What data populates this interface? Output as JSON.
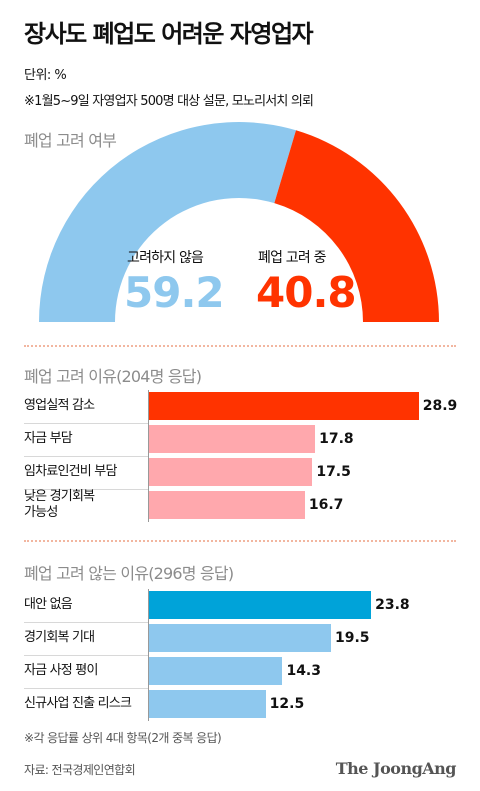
{
  "title": "장사도 폐업도 어려운 자영업자",
  "unit": "단위: %",
  "note": "※1월5~9일 자영업자 500명 대상 설문, 모노리서치 의뢰",
  "colors": {
    "red": "#ff3300",
    "pink": "#ffa8ad",
    "blue": "#8ec8ee",
    "teal": "#00a3d9"
  },
  "chart_data": [
    {
      "type": "pie",
      "title": "폐업 고려 여부",
      "shape": "half-donut gauge",
      "slices": [
        {
          "label": "고려하지 않음",
          "value": 59.2,
          "display": "59.2",
          "color": "#8ec8ee"
        },
        {
          "label": "폐업 고려 중",
          "value": 40.8,
          "display": "40.8",
          "color": "#ff3300"
        }
      ]
    },
    {
      "type": "bar",
      "orientation": "horizontal",
      "title": "폐업 고려 이유(204명 응답)",
      "categories": [
        "영업실적 감소",
        "자금 부담",
        "임차료인건비 부담",
        "낮은 경기회복 가능성"
      ],
      "category_lines": [
        [
          "영업실적 감소"
        ],
        [
          "자금 부담"
        ],
        [
          "임차료인건비 부담"
        ],
        [
          "낮은 경기회복",
          "가능성"
        ]
      ],
      "values": [
        28.9,
        17.8,
        17.5,
        16.7
      ],
      "labels": [
        "28.9",
        "17.8",
        "17.5",
        "16.7"
      ],
      "colors": [
        "#ff3300",
        "#ffa8ad",
        "#ffa8ad",
        "#ffa8ad"
      ],
      "xlim": [
        0,
        30
      ]
    },
    {
      "type": "bar",
      "orientation": "horizontal",
      "title": "폐업 고려 않는 이유(296명 응답)",
      "categories": [
        "대안 없음",
        "경기회복 기대",
        "자금 사정 평이",
        "신규사업 진출 리스크"
      ],
      "category_lines": [
        [
          "대안 없음"
        ],
        [
          "경기회복 기대"
        ],
        [
          "자금 사정 평이"
        ],
        [
          "신규사업 진출 리스크"
        ]
      ],
      "values": [
        23.8,
        19.5,
        14.3,
        12.5
      ],
      "labels": [
        "23.8",
        "19.5",
        "14.3",
        "12.5"
      ],
      "colors": [
        "#00a3d9",
        "#8ec8ee",
        "#8ec8ee",
        "#8ec8ee"
      ],
      "xlim": [
        0,
        30
      ]
    }
  ],
  "footnote": "※각 응답률 상위 4대 항목(2개 중복 응답)",
  "source": "자료: 전국경제인연합회",
  "logo": "The JoongAng"
}
